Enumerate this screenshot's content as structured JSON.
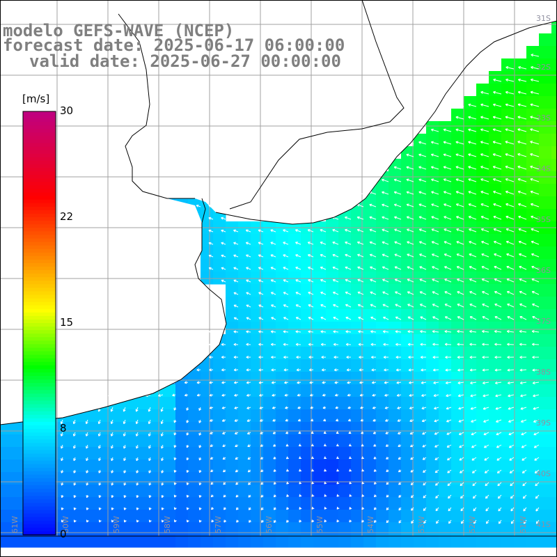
{
  "title": {
    "line1": "modelo GEFS-WAVE (NCEP)",
    "line2": "forecast date: 2025-06-17 06:00:00",
    "line3": "valid date: 2025-06-27 00:00:00"
  },
  "colorbar": {
    "unit": "[m/s]",
    "ticks": [
      "30",
      "22",
      "15",
      "8",
      "0"
    ],
    "tick_values": [
      30,
      22,
      15,
      8,
      0
    ],
    "colors": [
      "#0000ff",
      "#0080ff",
      "#00ffff",
      "#00ff00",
      "#ffff00",
      "#ff8000",
      "#ff0000",
      "#c0007f"
    ]
  },
  "map": {
    "lat_labels": [
      "31S",
      "32S",
      "33S",
      "34S",
      "35S",
      "36S",
      "37S",
      "38S",
      "39S",
      "40S",
      "41S"
    ],
    "lon_labels": [
      "61W",
      "60W",
      "59W",
      "58W",
      "57W",
      "56W",
      "55W",
      "54W",
      "53W",
      "52W",
      "51W"
    ],
    "land_color": "#ffffff",
    "grid_color": "#a0a0a0"
  }
}
